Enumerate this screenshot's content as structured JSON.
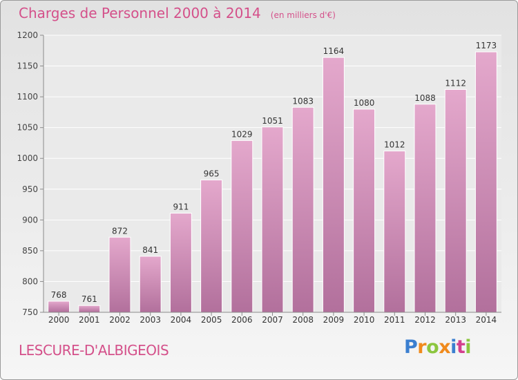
{
  "title": "Charges de Personnel 2000 à 2014",
  "subtitle": "(en milliers d'€)",
  "commune": "LESCURE-D'ALBIGEOIS",
  "logo": {
    "letters": [
      "P",
      "r",
      "o",
      "x",
      "i",
      "t",
      "i"
    ],
    "colors": [
      "#3b7fd0",
      "#f08a1c",
      "#8cc63f",
      "#f08a1c",
      "#3b7fd0",
      "#d43f8d",
      "#8cc63f"
    ]
  },
  "colors": {
    "bar_top": "#e4a8cc",
    "bar_bottom": "#b2709c",
    "title": "#d4508a"
  },
  "chart_data": {
    "type": "bar",
    "categories": [
      "2000",
      "2001",
      "2002",
      "2003",
      "2004",
      "2005",
      "2006",
      "2007",
      "2008",
      "2009",
      "2010",
      "2011",
      "2012",
      "2013",
      "2014"
    ],
    "values": [
      768,
      761,
      872,
      841,
      911,
      965,
      1029,
      1051,
      1083,
      1164,
      1080,
      1012,
      1088,
      1112,
      1173
    ],
    "ylim": [
      750,
      1200
    ],
    "yticks": [
      750,
      800,
      850,
      900,
      950,
      1000,
      1050,
      1100,
      1150,
      1200
    ],
    "grid": true
  }
}
